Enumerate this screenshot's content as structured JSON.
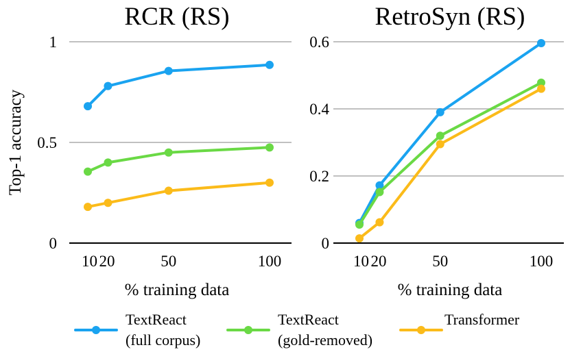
{
  "chart_data": [
    {
      "type": "line",
      "title": "RCR (RS)",
      "xlabel": "% training data",
      "ylabel": "Top-1 accuracy",
      "x": [
        10,
        20,
        50,
        100
      ],
      "x_tick_labels": [
        "10",
        "20",
        "50",
        "100"
      ],
      "ylim": [
        0,
        1
      ],
      "y_ticks": [
        0,
        0.5,
        1
      ],
      "y_tick_labels": [
        "0",
        "0.5",
        "1"
      ],
      "grid": true,
      "series": [
        {
          "name": "TextReact (full corpus)",
          "color": "#1aa3f0",
          "values": [
            0.68,
            0.78,
            0.855,
            0.885
          ]
        },
        {
          "name": "TextReact (gold-removed)",
          "color": "#6ad945",
          "values": [
            0.355,
            0.4,
            0.45,
            0.475
          ]
        },
        {
          "name": "Transformer",
          "color": "#fbbb1a",
          "values": [
            0.18,
            0.2,
            0.26,
            0.3
          ]
        }
      ]
    },
    {
      "type": "line",
      "title": "RetroSyn (RS)",
      "xlabel": "% training data",
      "ylabel": "",
      "x": [
        10,
        20,
        50,
        100
      ],
      "x_tick_labels": [
        "10",
        "20",
        "50",
        "100"
      ],
      "ylim": [
        0,
        0.6
      ],
      "y_ticks": [
        0,
        0.2,
        0.4,
        0.6
      ],
      "y_tick_labels": [
        "0",
        "0.2",
        "0.4",
        "0.6"
      ],
      "grid": true,
      "series": [
        {
          "name": "TextReact (full corpus)",
          "color": "#1aa3f0",
          "values": [
            0.06,
            0.172,
            0.39,
            0.596
          ]
        },
        {
          "name": "TextReact (gold-removed)",
          "color": "#6ad945",
          "values": [
            0.055,
            0.152,
            0.32,
            0.478
          ]
        },
        {
          "name": "Transformer",
          "color": "#fbbb1a",
          "values": [
            0.014,
            0.062,
            0.295,
            0.46
          ]
        }
      ]
    }
  ],
  "legend": {
    "placement": "bottom",
    "items": [
      {
        "line1": "TextReact",
        "line2": "(full corpus)",
        "color": "#1aa3f0"
      },
      {
        "line1": "TextReact",
        "line2": "(gold-removed)",
        "color": "#6ad945"
      },
      {
        "line1": "Transformer",
        "line2": "",
        "color": "#fbbb1a"
      }
    ]
  }
}
